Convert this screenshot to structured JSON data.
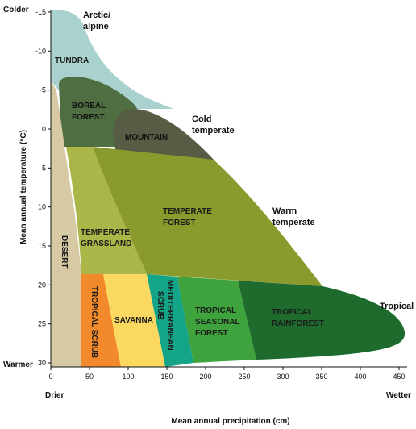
{
  "axes": {
    "x_title": "Mean annual precipitation (cm)",
    "y_title": "Mean annual temperature (°C)",
    "x_unit": "cm",
    "y_unit": "°C",
    "x_range": [
      0,
      450
    ],
    "y_range": [
      -15,
      30
    ],
    "x_ticks": [
      "0",
      "50",
      "100",
      "150",
      "200",
      "250",
      "300",
      "350",
      "400",
      "450"
    ],
    "y_ticks": [
      "-15",
      "-10",
      "-5",
      "0",
      "5",
      "10",
      "15",
      "20",
      "25",
      "30"
    ],
    "top_end_label": "Colder",
    "bottom_end_label": "Warmer",
    "left_end_label": "Drier",
    "right_end_label": "Wetter"
  },
  "zones": {
    "arctic": [
      "Arctic/",
      "alpine"
    ],
    "cold": [
      "Cold",
      "temperate"
    ],
    "warm": [
      "Warm",
      "temperate"
    ],
    "tropical": "Tropical"
  },
  "biomes": {
    "tundra": {
      "label": "TUNDRA",
      "color": "#a9d2cf"
    },
    "boreal": {
      "label": [
        "BOREAL",
        "FOREST"
      ],
      "color": "#4f6f43"
    },
    "mountain": {
      "label": "MOUNTAIN",
      "color": "#575d44"
    },
    "desert": {
      "label": "DESERT",
      "color": "#d6c9a4"
    },
    "temperate_grassland": {
      "label": [
        "TEMPERATE",
        "GRASSLAND"
      ],
      "color": "#aab648"
    },
    "temperate_forest": {
      "label": [
        "TEMPERATE",
        "FOREST"
      ],
      "color": "#8a9a2c"
    },
    "tropical_scrub": {
      "label": "TROPICAL SCRUB",
      "color": "#f28a2c"
    },
    "savanna": {
      "label": "SAVANNA",
      "color": "#fbd860"
    },
    "mediterranean_scrub": {
      "label": [
        "MEDITERRANEAN",
        "SCRUB"
      ],
      "color": "#14a487"
    },
    "tropical_seasonal_forest": {
      "label": [
        "TROPICAL",
        "SEASONAL",
        "FOREST"
      ],
      "color": "#3ea33d"
    },
    "tropical_rainforest": {
      "label": [
        "TROPICAL",
        "RAINFOREST"
      ],
      "color": "#1e6b2d"
    }
  }
}
